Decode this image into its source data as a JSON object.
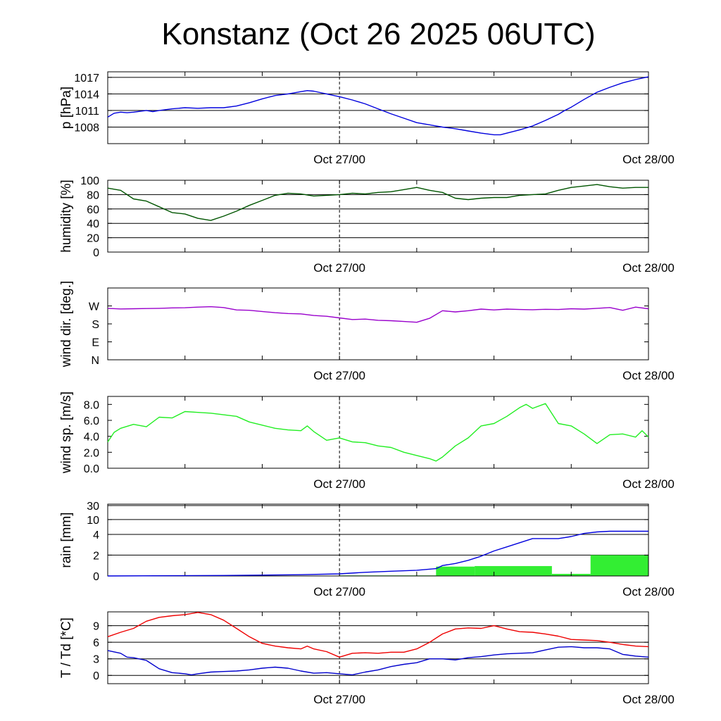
{
  "title": "Konstanz (Oct 26 2025 06UTC)",
  "colors": {
    "pressure": "#0000dd",
    "humidity": "#005500",
    "wind_dir": "#9900cc",
    "wind_speed": "#22ee22",
    "rain_bar": "#33ee33",
    "rain_line": "#0000dd",
    "temperature": "#ee0000",
    "dewpoint": "#0000cc"
  },
  "chart_data": [
    {
      "type": "line",
      "ylabel": "p [hPa]",
      "x_range_hours": [
        0,
        42
      ],
      "x_ticks": [
        {
          "x": 18,
          "label": "Oct 27/00"
        },
        {
          "x": 42,
          "label": "Oct 28/00"
        }
      ],
      "ylim": [
        1005,
        1018
      ],
      "y_ticks": [
        {
          "v": 1008,
          "label": "1008"
        },
        {
          "v": 1011,
          "label": "1011"
        },
        {
          "v": 1014,
          "label": "1014"
        },
        {
          "v": 1017,
          "label": "1017"
        }
      ],
      "grid": true,
      "series": [
        {
          "color_key": "pressure",
          "x": [
            0,
            0.5,
            1,
            1.5,
            2,
            3,
            3.5,
            4,
            5,
            6,
            7,
            8,
            9,
            10,
            11,
            12,
            13,
            14,
            15,
            15.5,
            16,
            17,
            18,
            19,
            20,
            21,
            22,
            23,
            24,
            25,
            26,
            27,
            28,
            29,
            30,
            30.5,
            31,
            32,
            33,
            34,
            35,
            35.5,
            36,
            37,
            38,
            39,
            40,
            41,
            42
          ],
          "y": [
            1009.8,
            1010.5,
            1010.7,
            1010.6,
            1010.7,
            1011.0,
            1010.8,
            1011.0,
            1011.3,
            1011.5,
            1011.4,
            1011.5,
            1011.5,
            1011.8,
            1012.4,
            1013.1,
            1013.7,
            1014.0,
            1014.4,
            1014.6,
            1014.5,
            1014.0,
            1013.5,
            1012.9,
            1012.2,
            1011.3,
            1010.4,
            1009.6,
            1008.8,
            1008.4,
            1008.0,
            1007.7,
            1007.3,
            1006.9,
            1006.6,
            1006.6,
            1006.9,
            1007.5,
            1008.2,
            1009.2,
            1010.3,
            1011.0,
            1011.6,
            1013.0,
            1014.3,
            1015.2,
            1016.0,
            1016.6,
            1017.1
          ]
        }
      ]
    },
    {
      "type": "line",
      "ylabel": "humidity [%]",
      "x_range_hours": [
        0,
        42
      ],
      "x_ticks": [
        {
          "x": 18,
          "label": "Oct 27/00"
        },
        {
          "x": 42,
          "label": "Oct 28/00"
        }
      ],
      "ylim": [
        0,
        100
      ],
      "y_ticks": [
        {
          "v": 0,
          "label": "0"
        },
        {
          "v": 20,
          "label": "20"
        },
        {
          "v": 40,
          "label": "40"
        },
        {
          "v": 60,
          "label": "60"
        },
        {
          "v": 80,
          "label": "80"
        },
        {
          "v": 100,
          "label": "100"
        }
      ],
      "grid": true,
      "series": [
        {
          "color_key": "humidity",
          "x": [
            0,
            1,
            2,
            3,
            4,
            5,
            6,
            7,
            8,
            9,
            10,
            11,
            12,
            13,
            14,
            15,
            16,
            17,
            18,
            19,
            20,
            21,
            22,
            23,
            24,
            25,
            26,
            27,
            28,
            29,
            30,
            31,
            32,
            33,
            34,
            35,
            36,
            37,
            38,
            39,
            40,
            41,
            42
          ],
          "y": [
            89,
            86,
            74,
            71,
            63,
            55,
            53,
            47,
            44,
            50,
            57,
            65,
            72,
            79,
            82,
            81,
            78,
            79,
            80,
            82,
            81,
            83,
            84,
            87,
            90,
            86,
            83,
            75,
            73,
            75,
            76,
            76,
            79,
            80,
            81,
            86,
            90,
            92,
            94,
            91,
            89,
            90,
            90
          ]
        }
      ]
    },
    {
      "type": "line",
      "ylabel": "wind dir. [deg.]",
      "x_range_hours": [
        0,
        42
      ],
      "x_ticks": [
        {
          "x": 18,
          "label": "Oct 27/00"
        },
        {
          "x": 42,
          "label": "Oct 28/00"
        }
      ],
      "ylim": [
        0,
        360
      ],
      "y_ticks": [
        {
          "v": 0,
          "label": "N"
        },
        {
          "v": 90,
          "label": "E"
        },
        {
          "v": 180,
          "label": "S"
        },
        {
          "v": 270,
          "label": "W"
        }
      ],
      "grid": false,
      "series": [
        {
          "color_key": "wind_dir",
          "x": [
            0,
            1,
            2,
            3,
            4,
            5,
            6,
            7,
            8,
            9,
            10,
            11,
            12,
            13,
            14,
            15,
            16,
            17,
            18,
            19,
            20,
            21,
            22,
            23,
            24,
            25,
            26,
            27,
            28,
            29,
            30,
            31,
            32,
            33,
            34,
            35,
            36,
            37,
            38,
            39,
            40,
            41,
            42
          ],
          "y": [
            258,
            255,
            256,
            257,
            258,
            260,
            261,
            264,
            266,
            262,
            250,
            248,
            242,
            236,
            232,
            230,
            222,
            218,
            210,
            202,
            204,
            198,
            196,
            192,
            188,
            208,
            246,
            240,
            246,
            254,
            250,
            254,
            252,
            251,
            253,
            252,
            256,
            254,
            258,
            262,
            248,
            264,
            256
          ]
        }
      ]
    },
    {
      "type": "line",
      "ylabel": "wind sp. [m/s]",
      "x_range_hours": [
        0,
        42
      ],
      "x_ticks": [
        {
          "x": 18,
          "label": "Oct 27/00"
        },
        {
          "x": 42,
          "label": "Oct 28/00"
        }
      ],
      "ylim": [
        0,
        9
      ],
      "y_ticks": [
        {
          "v": 0,
          "label": "0.0"
        },
        {
          "v": 2,
          "label": "2.0"
        },
        {
          "v": 4,
          "label": "4.0"
        },
        {
          "v": 6,
          "label": "6.0"
        },
        {
          "v": 8,
          "label": "8.0"
        }
      ],
      "grid": false,
      "series": [
        {
          "color_key": "wind_speed",
          "x": [
            0,
            0.5,
            1,
            2,
            3,
            4,
            5,
            6,
            7,
            8,
            9,
            10,
            11,
            12,
            13,
            14,
            15,
            15.5,
            16,
            17,
            18,
            19,
            20,
            21,
            22,
            23,
            24,
            25,
            25.5,
            26,
            27,
            28,
            29,
            30,
            31,
            32,
            32.5,
            33,
            34,
            35,
            36,
            37,
            38,
            39,
            40,
            41,
            41.5,
            42
          ],
          "y": [
            3.3,
            4.5,
            5.0,
            5.5,
            5.2,
            6.4,
            6.3,
            7.1,
            7.0,
            6.9,
            6.7,
            6.5,
            5.8,
            5.4,
            5.0,
            4.8,
            4.7,
            5.3,
            4.6,
            3.5,
            3.8,
            3.3,
            3.2,
            2.8,
            2.6,
            2.0,
            1.6,
            1.2,
            0.9,
            1.4,
            2.8,
            3.8,
            5.3,
            5.6,
            6.5,
            7.6,
            8.0,
            7.5,
            8.1,
            5.6,
            5.3,
            4.3,
            3.1,
            4.2,
            4.3,
            3.9,
            4.7,
            3.9
          ]
        }
      ]
    },
    {
      "type": "bar",
      "ylabel": "rain [mm]",
      "x_range_hours": [
        0,
        42
      ],
      "x_ticks": [
        {
          "x": 18,
          "label": "Oct 27/00"
        },
        {
          "x": 42,
          "label": "Oct 28/00"
        }
      ],
      "y_scale": "custom",
      "y_ticks": [
        {
          "v": 0,
          "label": "0"
        },
        {
          "v": 2,
          "label": "2"
        },
        {
          "v": 4,
          "label": "4"
        },
        {
          "v": 10,
          "label": "10"
        },
        {
          "v": 30,
          "label": "30"
        }
      ],
      "grid": true,
      "bars": [
        {
          "x0": 9,
          "x1": 18,
          "value": 0.02
        },
        {
          "x0": 18,
          "x1": 25.5,
          "value": 0.05
        },
        {
          "x0": 25.5,
          "x1": 28.5,
          "value": 0.9
        },
        {
          "x0": 28.5,
          "x1": 34.5,
          "value": 0.95
        },
        {
          "x0": 34.5,
          "x1": 37.5,
          "value": 0.2
        },
        {
          "x0": 37.5,
          "x1": 42,
          "value": 2.0
        }
      ],
      "series": [
        {
          "color_key": "rain_line",
          "name_hidden": true,
          "x": [
            0,
            9,
            12,
            15,
            18,
            20,
            22,
            24,
            25.5,
            26,
            27,
            28,
            29,
            30,
            31,
            32,
            33,
            35,
            36,
            37,
            38,
            39,
            40,
            41,
            42
          ],
          "y": [
            0,
            0.05,
            0.08,
            0.12,
            0.2,
            0.35,
            0.45,
            0.55,
            0.7,
            1.0,
            1.2,
            1.5,
            1.9,
            2.4,
            2.8,
            3.2,
            3.6,
            3.6,
            3.8,
            4.4,
            5.0,
            5.3,
            5.3,
            5.3,
            5.3
          ]
        }
      ]
    },
    {
      "type": "line",
      "ylabel": "T / Td [*C]",
      "x_range_hours": [
        0,
        42
      ],
      "x_ticks": [
        {
          "x": 18,
          "label": "Oct 27/00"
        },
        {
          "x": 42,
          "label": "Oct 28/00"
        }
      ],
      "ylim": [
        -1.5,
        11.5
      ],
      "y_ticks": [
        {
          "v": 0,
          "label": "0"
        },
        {
          "v": 3,
          "label": "3"
        },
        {
          "v": 6,
          "label": "6"
        },
        {
          "v": 9,
          "label": "9"
        }
      ],
      "grid": true,
      "series": [
        {
          "color_key": "temperature",
          "x": [
            0,
            1,
            2,
            3,
            4,
            5,
            6,
            7,
            8,
            9,
            10,
            11,
            12,
            13,
            14,
            15,
            15.5,
            16,
            17,
            18,
            19,
            20,
            21,
            22,
            23,
            24,
            25,
            26,
            27,
            28,
            29,
            30,
            31,
            32,
            33,
            34,
            35,
            36,
            37,
            38,
            39,
            40,
            41,
            42
          ],
          "y": [
            7.0,
            7.8,
            8.5,
            9.8,
            10.5,
            10.8,
            11.0,
            11.4,
            11.0,
            10.0,
            8.5,
            7.0,
            5.8,
            5.3,
            5.0,
            4.8,
            5.3,
            4.8,
            4.3,
            3.3,
            4.0,
            4.1,
            4.0,
            4.2,
            4.2,
            4.8,
            6.0,
            7.5,
            8.4,
            8.6,
            8.5,
            9.0,
            8.4,
            7.9,
            7.8,
            7.5,
            7.1,
            6.5,
            6.4,
            6.3,
            6.0,
            5.6,
            5.3,
            5.2
          ]
        },
        {
          "color_key": "dewpoint",
          "x": [
            0,
            1,
            1.5,
            2,
            3,
            4,
            5,
            6,
            6.5,
            7,
            8,
            9,
            10,
            11,
            12,
            13,
            14,
            15,
            16,
            17,
            18,
            19,
            20,
            21,
            22,
            23,
            24,
            25,
            26,
            27,
            28,
            29,
            30,
            31,
            32,
            33,
            34,
            35,
            36,
            37,
            38,
            39,
            40,
            41,
            42
          ],
          "y": [
            4.5,
            4.0,
            3.3,
            3.2,
            2.7,
            1.2,
            0.5,
            0.3,
            0.1,
            0.3,
            0.6,
            0.7,
            0.8,
            1.0,
            1.3,
            1.5,
            1.3,
            0.8,
            0.4,
            0.5,
            0.3,
            0.1,
            0.6,
            1.0,
            1.6,
            2.0,
            2.3,
            3.0,
            3.0,
            2.8,
            3.2,
            3.4,
            3.7,
            3.9,
            4.0,
            4.1,
            4.6,
            5.1,
            5.2,
            5.0,
            5.0,
            4.8,
            3.8,
            3.5,
            3.3
          ]
        }
      ]
    }
  ]
}
